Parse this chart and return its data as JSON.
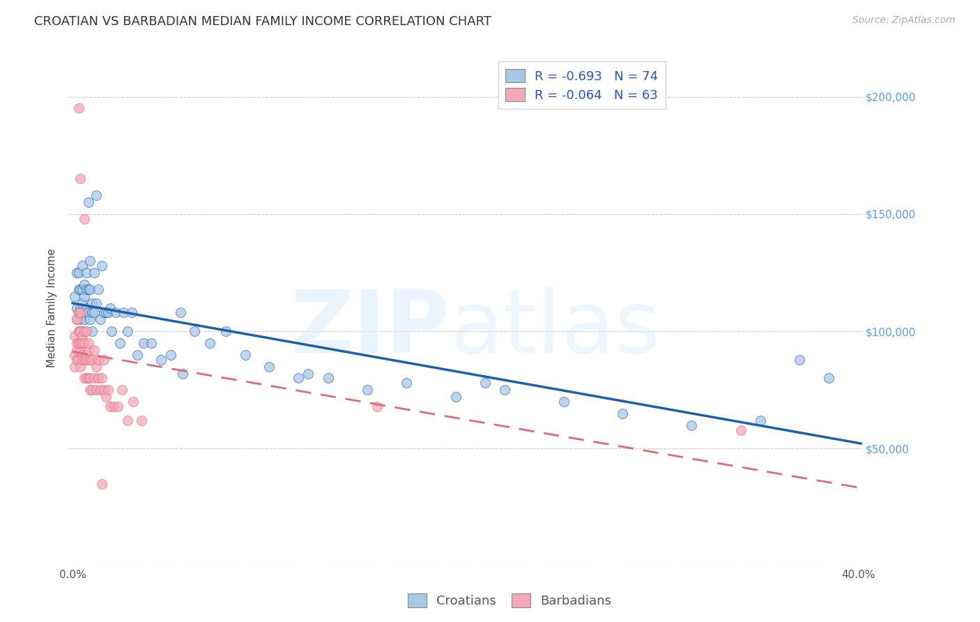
{
  "title": "CROATIAN VS BARBADIAN MEDIAN FAMILY INCOME CORRELATION CHART",
  "source": "Source: ZipAtlas.com",
  "ylabel": "Median Family Income",
  "xlim": [
    -0.002,
    0.402
  ],
  "ylim": [
    0,
    220000
  ],
  "croatian_color": "#a8c8e8",
  "barbadian_color": "#f5a8b8",
  "croatian_line_color": "#1a5fad",
  "barbadian_line_color": "#e06878",
  "grid_color": "#cccccc",
  "background_color": "#ffffff",
  "legend_R1": "R = -0.693",
  "legend_N1": "N = 74",
  "legend_R2": "R = -0.064",
  "legend_N2": "N = 63",
  "croatian_label": "Croatians",
  "barbadian_label": "Barbadians",
  "right_ytick_color": "#5599ee",
  "title_fontsize": 13,
  "source_fontsize": 10,
  "axis_label_fontsize": 11,
  "tick_fontsize": 11,
  "legend_fontsize": 13,
  "marker_size": 100,
  "marker_alpha": 0.75,
  "croatian_x": [
    0.001,
    0.002,
    0.002,
    0.003,
    0.003,
    0.003,
    0.004,
    0.004,
    0.004,
    0.004,
    0.005,
    0.005,
    0.005,
    0.005,
    0.005,
    0.006,
    0.006,
    0.006,
    0.006,
    0.007,
    0.007,
    0.007,
    0.008,
    0.008,
    0.008,
    0.009,
    0.009,
    0.009,
    0.01,
    0.01,
    0.01,
    0.011,
    0.011,
    0.012,
    0.012,
    0.013,
    0.014,
    0.015,
    0.016,
    0.017,
    0.018,
    0.019,
    0.02,
    0.022,
    0.024,
    0.026,
    0.028,
    0.03,
    0.033,
    0.036,
    0.04,
    0.045,
    0.05,
    0.056,
    0.062,
    0.07,
    0.078,
    0.088,
    0.1,
    0.115,
    0.13,
    0.15,
    0.17,
    0.195,
    0.22,
    0.25,
    0.28,
    0.315,
    0.35,
    0.385,
    0.055,
    0.12,
    0.21,
    0.37
  ],
  "croatian_y": [
    115000,
    125000,
    110000,
    108000,
    118000,
    125000,
    100000,
    110000,
    118000,
    105000,
    112000,
    108000,
    100000,
    118000,
    128000,
    105000,
    115000,
    108000,
    120000,
    118000,
    110000,
    125000,
    155000,
    108000,
    118000,
    105000,
    118000,
    130000,
    112000,
    108000,
    100000,
    108000,
    125000,
    158000,
    112000,
    118000,
    105000,
    128000,
    108000,
    108000,
    108000,
    110000,
    100000,
    108000,
    95000,
    108000,
    100000,
    108000,
    90000,
    95000,
    95000,
    88000,
    90000,
    82000,
    100000,
    95000,
    100000,
    90000,
    85000,
    80000,
    80000,
    75000,
    78000,
    72000,
    75000,
    70000,
    65000,
    60000,
    62000,
    80000,
    108000,
    82000,
    78000,
    88000
  ],
  "barbadian_x": [
    0.001,
    0.001,
    0.001,
    0.002,
    0.002,
    0.002,
    0.002,
    0.002,
    0.003,
    0.003,
    0.003,
    0.003,
    0.003,
    0.004,
    0.004,
    0.004,
    0.004,
    0.004,
    0.005,
    0.005,
    0.005,
    0.005,
    0.006,
    0.006,
    0.006,
    0.006,
    0.007,
    0.007,
    0.007,
    0.007,
    0.008,
    0.008,
    0.008,
    0.009,
    0.009,
    0.009,
    0.01,
    0.01,
    0.011,
    0.011,
    0.012,
    0.012,
    0.013,
    0.013,
    0.014,
    0.015,
    0.016,
    0.016,
    0.017,
    0.018,
    0.019,
    0.021,
    0.023,
    0.025,
    0.028,
    0.031,
    0.035,
    0.003,
    0.004,
    0.006,
    0.015,
    0.155,
    0.34
  ],
  "barbadian_y": [
    90000,
    98000,
    85000,
    105000,
    95000,
    88000,
    105000,
    92000,
    100000,
    95000,
    88000,
    100000,
    108000,
    92000,
    85000,
    108000,
    95000,
    100000,
    90000,
    98000,
    88000,
    95000,
    100000,
    88000,
    95000,
    80000,
    90000,
    100000,
    88000,
    80000,
    92000,
    80000,
    95000,
    88000,
    80000,
    75000,
    88000,
    75000,
    92000,
    80000,
    85000,
    75000,
    80000,
    88000,
    75000,
    80000,
    75000,
    88000,
    72000,
    75000,
    68000,
    68000,
    68000,
    75000,
    62000,
    70000,
    62000,
    195000,
    165000,
    148000,
    35000,
    68000,
    58000
  ]
}
